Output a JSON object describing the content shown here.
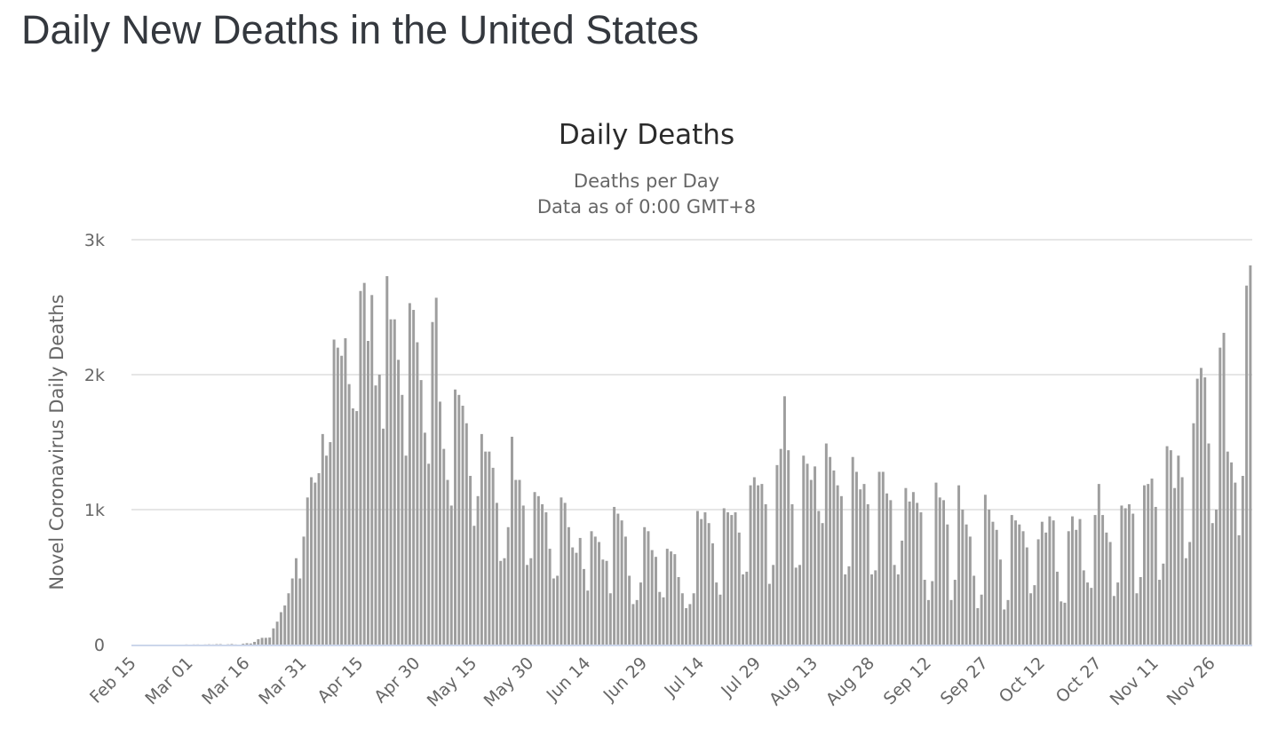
{
  "header": {
    "title": "Daily New Deaths in the United States"
  },
  "chart_data": {
    "type": "bar",
    "title": "Daily Deaths",
    "subtitle": [
      "Deaths per Day",
      "Data as of 0:00 GMT+8"
    ],
    "xlabel": "",
    "ylabel": "Novel Coronavirus Daily Deaths",
    "ylim": [
      0,
      3000
    ],
    "yticks": [
      0,
      1000,
      2000,
      3000
    ],
    "ytick_labels": [
      "0",
      "1k",
      "2k",
      "3k"
    ],
    "grid": true,
    "bar_color": "#9e9e9e",
    "x_start": "Feb 15",
    "x_end": "Dec 02",
    "xtick_labels": [
      "Feb 15",
      "Mar 01",
      "Mar 16",
      "Mar 31",
      "Apr 15",
      "Apr 30",
      "May 15",
      "May 30",
      "Jun 14",
      "Jun 29",
      "Jul 14",
      "Jul 29",
      "Aug 13",
      "Aug 28",
      "Sep 12",
      "Sep 27",
      "Oct 12",
      "Oct 27",
      "Nov 11",
      "Nov 26"
    ],
    "xtick_interval_days": 15,
    "series": [
      {
        "name": "Daily Deaths",
        "values": [
          0,
          0,
          0,
          0,
          0,
          0,
          0,
          0,
          0,
          0,
          0,
          0,
          0,
          0,
          1,
          0,
          1,
          1,
          0,
          1,
          2,
          1,
          3,
          3,
          0,
          2,
          4,
          1,
          0,
          6,
          10,
          8,
          20,
          40,
          50,
          50,
          52,
          120,
          170,
          240,
          290,
          380,
          490,
          640,
          490,
          800,
          1090,
          1240,
          1200,
          1270,
          1560,
          1400,
          1500,
          2260,
          2200,
          2140,
          2270,
          1930,
          1750,
          1730,
          2620,
          2680,
          2250,
          2590,
          1920,
          2000,
          1600,
          2730,
          2410,
          2410,
          2110,
          1850,
          1400,
          2530,
          2480,
          2240,
          1960,
          1570,
          1340,
          2390,
          2570,
          1800,
          1450,
          1220,
          1030,
          1890,
          1850,
          1770,
          1640,
          1250,
          880,
          1100,
          1560,
          1430,
          1430,
          1310,
          1050,
          620,
          640,
          870,
          1540,
          1220,
          1220,
          1030,
          590,
          640,
          1130,
          1100,
          1040,
          980,
          710,
          490,
          510,
          1090,
          1050,
          870,
          720,
          680,
          790,
          560,
          400,
          840,
          800,
          760,
          630,
          620,
          380,
          1020,
          970,
          920,
          800,
          510,
          300,
          330,
          460,
          870,
          840,
          700,
          650,
          390,
          350,
          710,
          690,
          670,
          500,
          380,
          270,
          300,
          380,
          990,
          930,
          980,
          900,
          750,
          460,
          370,
          1010,
          980,
          960,
          980,
          830,
          520,
          540,
          1180,
          1240,
          1180,
          1190,
          1040,
          450,
          590,
          1330,
          1450,
          1840,
          1440,
          1040,
          570,
          590,
          1400,
          1340,
          1220,
          1320,
          990,
          900,
          1490,
          1390,
          1290,
          1180,
          1100,
          520,
          580,
          1390,
          1280,
          1150,
          1190,
          1040,
          520,
          550,
          1280,
          1280,
          1120,
          1070,
          590,
          520,
          770,
          1160,
          1060,
          1130,
          1050,
          980,
          480,
          330,
          470,
          1200,
          1090,
          1070,
          890,
          330,
          480,
          1180,
          1000,
          890,
          800,
          510,
          270,
          370,
          1110,
          1000,
          910,
          850,
          630,
          260,
          330,
          960,
          920,
          890,
          840,
          720,
          380,
          440,
          780,
          910,
          830,
          950,
          920,
          540,
          320,
          310,
          840,
          950,
          850,
          930,
          550,
          460,
          420,
          960,
          1190,
          960,
          830,
          760,
          360,
          460,
          1030,
          1010,
          1040,
          970,
          380,
          500,
          1180,
          1190,
          1230,
          1020,
          480,
          600,
          1470,
          1440,
          1160,
          1400,
          1240,
          640,
          760,
          1640,
          1970,
          2050,
          1980,
          1490,
          900,
          1000,
          2200,
          2310,
          1430,
          1350,
          1200,
          810,
          1250,
          2660,
          2810
        ]
      }
    ]
  }
}
